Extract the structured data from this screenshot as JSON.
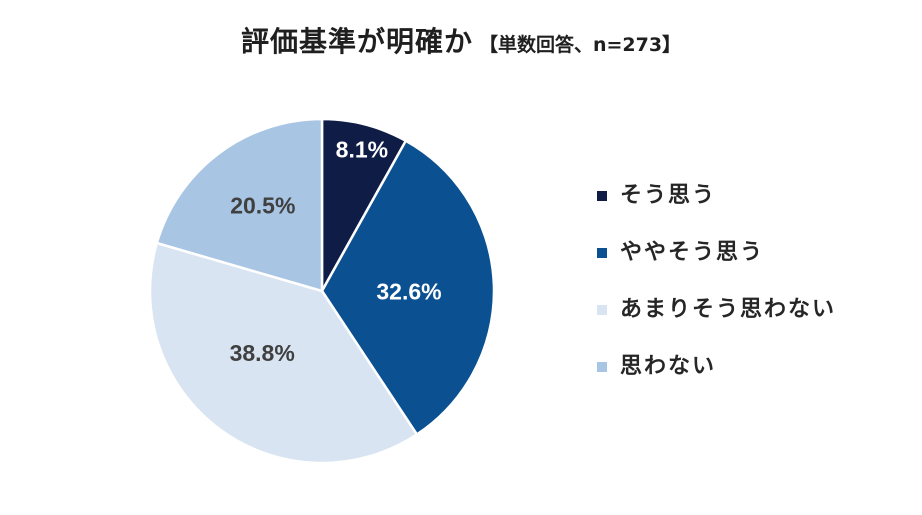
{
  "chart_data": {
    "type": "pie",
    "title": "評価基準が明確か",
    "subtitle": "【単数回答、n=273】",
    "categories": [
      "そう思う",
      "ややそう思う",
      "あまりそう思わない",
      "思わない"
    ],
    "values": [
      8.1,
      32.6,
      38.8,
      20.5
    ],
    "data_labels": [
      "8.1%",
      "32.6%",
      "38.8%",
      "20.5%"
    ],
    "colors": [
      "#0f1c46",
      "#0b5192",
      "#d8e4f1",
      "#a8c5e4"
    ],
    "data_label_colors": [
      "#ffffff",
      "#ffffff",
      "#404040",
      "#404040"
    ],
    "legend_position": "right"
  }
}
